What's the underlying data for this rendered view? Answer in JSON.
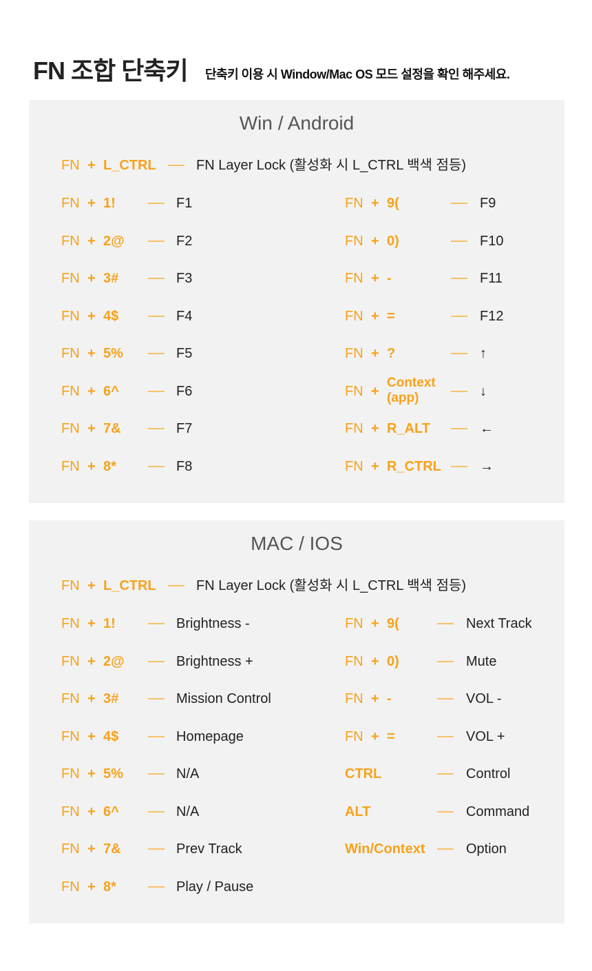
{
  "header": {
    "title": "FN 조합 단축키",
    "subtitle": "단축키 이용 시 Window/Mac OS 모드 설정을 확인 해주세요."
  },
  "colors": {
    "accent": "#f7a21b",
    "panel": "#f2f2f2"
  },
  "sections": [
    {
      "title": "Win / Android",
      "lock": {
        "fn": "FN",
        "plus": "+",
        "key": "L_CTRL",
        "result": "FN Layer Lock (활성화 시 L_CTRL 백색 점등)"
      },
      "left": [
        {
          "fn": "FN",
          "plus": "+",
          "key": "1!",
          "result": "F1"
        },
        {
          "fn": "FN",
          "plus": "+",
          "key": "2@",
          "result": "F2"
        },
        {
          "fn": "FN",
          "plus": "+",
          "key": "3#",
          "result": "F3"
        },
        {
          "fn": "FN",
          "plus": "+",
          "key": "4$",
          "result": "F4"
        },
        {
          "fn": "FN",
          "plus": "+",
          "key": "5%",
          "result": "F5"
        },
        {
          "fn": "FN",
          "plus": "+",
          "key": "6^",
          "result": "F6"
        },
        {
          "fn": "FN",
          "plus": "+",
          "key": "7&",
          "result": "F7"
        },
        {
          "fn": "FN",
          "plus": "+",
          "key": "8*",
          "result": "F8"
        }
      ],
      "right": [
        {
          "fn": "FN",
          "plus": "+",
          "key": "9(",
          "result": "F9"
        },
        {
          "fn": "FN",
          "plus": "+",
          "key": "0)",
          "result": "F10"
        },
        {
          "fn": "FN",
          "plus": "+",
          "key": "-",
          "result": "F11"
        },
        {
          "fn": "FN",
          "plus": "+",
          "key": "=",
          "result": "F12"
        },
        {
          "fn": "FN",
          "plus": "+",
          "key": "?",
          "result": "↑"
        },
        {
          "fn": "FN",
          "plus": "+",
          "key": "Context (app)",
          "result": "↓"
        },
        {
          "fn": "FN",
          "plus": "+",
          "key": "R_ALT",
          "result": "←"
        },
        {
          "fn": "FN",
          "plus": "+",
          "key": "R_CTRL",
          "result": "→"
        }
      ]
    },
    {
      "title": "MAC / IOS",
      "lock": {
        "fn": "FN",
        "plus": "+",
        "key": "L_CTRL",
        "result": "FN Layer Lock (활성화 시 L_CTRL 백색 점등)"
      },
      "left": [
        {
          "fn": "FN",
          "plus": "+",
          "key": "1!",
          "result": "Brightness -"
        },
        {
          "fn": "FN",
          "plus": "+",
          "key": "2@",
          "result": "Brightness +"
        },
        {
          "fn": "FN",
          "plus": "+",
          "key": "3#",
          "result": "Mission Control"
        },
        {
          "fn": "FN",
          "plus": "+",
          "key": "4$",
          "result": "Homepage"
        },
        {
          "fn": "FN",
          "plus": "+",
          "key": "5%",
          "result": "N/A"
        },
        {
          "fn": "FN",
          "plus": "+",
          "key": "6^",
          "result": "N/A"
        },
        {
          "fn": "FN",
          "plus": "+",
          "key": "7&",
          "result": "Prev Track"
        },
        {
          "fn": "FN",
          "plus": "+",
          "key": "8*",
          "result": "Play / Pause"
        }
      ],
      "right": [
        {
          "fn": "FN",
          "plus": "+",
          "key": "9(",
          "result": "Next Track"
        },
        {
          "fn": "FN",
          "plus": "+",
          "key": "0)",
          "result": "Mute"
        },
        {
          "fn": "FN",
          "plus": "+",
          "key": "-",
          "result": "VOL -"
        },
        {
          "fn": "FN",
          "plus": "+",
          "key": "=",
          "result": "VOL +"
        },
        {
          "key": "CTRL",
          "result": "Control"
        },
        {
          "key": "ALT",
          "result": "Command"
        },
        {
          "key": "Win/Context",
          "result": "Option"
        }
      ]
    }
  ]
}
